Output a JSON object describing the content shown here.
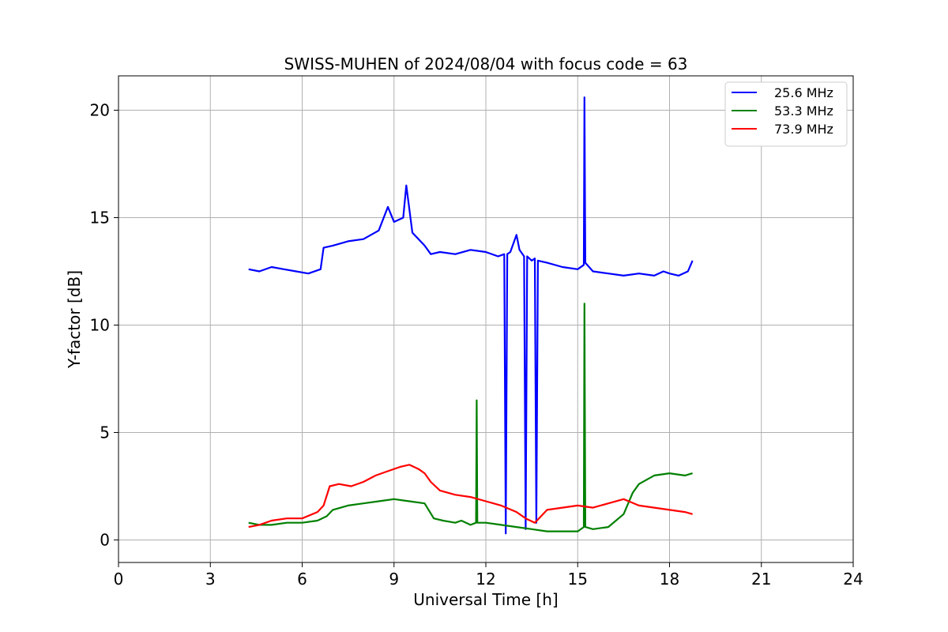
{
  "chart_data": {
    "type": "line",
    "title": "SWISS-MUHEN of 2024/08/04 with focus code = 63",
    "xlabel": "Universal Time [h]",
    "ylabel": "Y-factor [dB]",
    "xlim": [
      0,
      24
    ],
    "ylim": [
      -1.05,
      21.6
    ],
    "xticks": [
      0,
      3,
      6,
      9,
      12,
      15,
      18,
      21,
      24
    ],
    "yticks": [
      0,
      5,
      10,
      15,
      20
    ],
    "grid": true,
    "legend_position": "top-right",
    "series": [
      {
        "name": "25.6 MHz",
        "color": "#0000ff",
        "x": [
          4.25,
          4.6,
          5.0,
          5.4,
          5.8,
          6.2,
          6.6,
          6.7,
          7.0,
          7.5,
          8.0,
          8.5,
          8.8,
          9.0,
          9.3,
          9.4,
          9.6,
          10.0,
          10.2,
          10.5,
          11.0,
          11.5,
          12.0,
          12.4,
          12.6,
          12.65,
          12.7,
          12.8,
          13.0,
          13.1,
          13.25,
          13.3,
          13.35,
          13.5,
          13.6,
          13.65,
          13.7,
          14.0,
          14.5,
          15.0,
          15.2,
          15.22,
          15.25,
          15.5,
          16.0,
          16.5,
          17.0,
          17.5,
          17.8,
          18.0,
          18.3,
          18.6,
          18.75
        ],
        "y": [
          12.6,
          12.5,
          12.7,
          12.6,
          12.5,
          12.4,
          12.6,
          13.6,
          13.7,
          13.9,
          14.0,
          14.4,
          15.5,
          14.8,
          15.0,
          16.5,
          14.3,
          13.7,
          13.3,
          13.4,
          13.3,
          13.5,
          13.4,
          13.2,
          13.3,
          0.3,
          13.3,
          13.4,
          14.2,
          13.5,
          13.2,
          0.5,
          13.2,
          13.0,
          13.1,
          0.8,
          13.0,
          12.9,
          12.7,
          12.6,
          12.8,
          20.6,
          12.9,
          12.5,
          12.4,
          12.3,
          12.4,
          12.3,
          12.5,
          12.4,
          12.3,
          12.5,
          13.0
        ]
      },
      {
        "name": "53.3 MHz",
        "color": "#008000",
        "x": [
          4.25,
          4.6,
          5.0,
          5.5,
          6.0,
          6.5,
          6.8,
          7.0,
          7.5,
          8.0,
          8.5,
          9.0,
          9.5,
          10.0,
          10.3,
          10.6,
          11.0,
          11.2,
          11.5,
          11.68,
          11.7,
          11.72,
          12.0,
          12.5,
          13.0,
          13.5,
          14.0,
          14.5,
          15.0,
          15.2,
          15.22,
          15.25,
          15.5,
          16.0,
          16.5,
          16.8,
          17.0,
          17.5,
          18.0,
          18.5,
          18.75
        ],
        "y": [
          0.8,
          0.7,
          0.7,
          0.8,
          0.8,
          0.9,
          1.1,
          1.4,
          1.6,
          1.7,
          1.8,
          1.9,
          1.8,
          1.7,
          1.0,
          0.9,
          0.8,
          0.9,
          0.7,
          0.8,
          6.5,
          0.8,
          0.8,
          0.7,
          0.6,
          0.5,
          0.4,
          0.4,
          0.4,
          0.6,
          11.0,
          0.6,
          0.5,
          0.6,
          1.2,
          2.2,
          2.6,
          3.0,
          3.1,
          3.0,
          3.1
        ]
      },
      {
        "name": "73.9 MHz",
        "color": "#ff0000",
        "x": [
          4.25,
          4.6,
          5.0,
          5.5,
          6.0,
          6.5,
          6.7,
          6.9,
          7.2,
          7.6,
          8.0,
          8.4,
          8.8,
          9.2,
          9.5,
          9.8,
          10.0,
          10.2,
          10.5,
          11.0,
          11.5,
          12.0,
          12.5,
          13.0,
          13.3,
          13.6,
          14.0,
          14.5,
          15.0,
          15.5,
          16.0,
          16.5,
          17.0,
          17.5,
          18.0,
          18.5,
          18.75
        ],
        "y": [
          0.6,
          0.7,
          0.9,
          1.0,
          1.0,
          1.3,
          1.6,
          2.5,
          2.6,
          2.5,
          2.7,
          3.0,
          3.2,
          3.4,
          3.5,
          3.3,
          3.1,
          2.7,
          2.3,
          2.1,
          2.0,
          1.8,
          1.6,
          1.3,
          1.0,
          0.8,
          1.4,
          1.5,
          1.6,
          1.5,
          1.7,
          1.9,
          1.6,
          1.5,
          1.4,
          1.3,
          1.2
        ]
      }
    ]
  }
}
